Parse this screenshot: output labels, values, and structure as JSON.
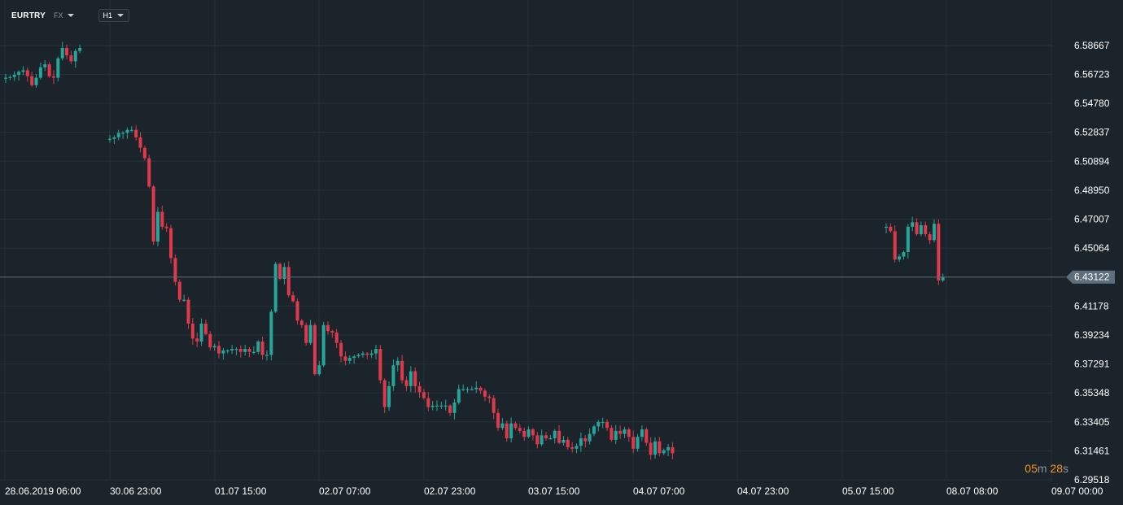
{
  "toolbar": {
    "symbol": "EURTRY",
    "instrument_type": "FX",
    "timeframe": "H1"
  },
  "countdown": {
    "minutes": "05",
    "minutes_unit": "m",
    "seconds": "28",
    "seconds_unit": "s"
  },
  "current_price": "6.43122",
  "colors": {
    "background": "#1b242b",
    "grid": "#26313a",
    "up": "#26a69a",
    "down": "#e0394b",
    "price_line": "#5b6c78",
    "price_tag": "#5e6e7a",
    "timer": "#f7931e"
  },
  "chart_data": {
    "type": "candlestick",
    "y_ticks": [
      "6.58667",
      "6.56723",
      "6.54780",
      "6.52837",
      "6.50894",
      "6.48950",
      "6.47007",
      "6.45064",
      "6.43122",
      "6.41178",
      "6.39234",
      "6.37291",
      "6.35348",
      "6.33405",
      "6.31461",
      "6.29518"
    ],
    "x_ticks": [
      "28.06.2019  06:00",
      "30.06  23:00",
      "01.07  15:00",
      "02.07  07:00",
      "02.07  23:00",
      "03.07  15:00",
      "04.07  07:00",
      "04.07  23:00",
      "05.07  15:00",
      "08.07  08:00",
      "09.07  00:00"
    ],
    "ylim": [
      6.29518,
      6.59752
    ],
    "grid": true,
    "segments": [
      {
        "label": "28.06.2019 06:00",
        "closes": [
          6.565,
          6.5655,
          6.567,
          6.569,
          6.57,
          6.566,
          6.56,
          6.565,
          6.572,
          6.574,
          6.566,
          6.565,
          6.578,
          6.585,
          6.58,
          6.576,
          6.583,
          6.585
        ]
      },
      {
        "label": "30.06 23:00",
        "closes": [
          6.524,
          6.525,
          6.528,
          6.528,
          6.53,
          6.53,
          6.525,
          6.518,
          6.511,
          6.492,
          6.455,
          6.475,
          6.465,
          6.464,
          6.444,
          6.428,
          6.416,
          6.416,
          6.4,
          6.39,
          6.388,
          6.4,
          6.393,
          6.384,
          6.385,
          6.38,
          6.382,
          6.382,
          6.383,
          6.383,
          6.381,
          6.383,
          6.381,
          6.381,
          6.388,
          6.379,
          6.379,
          6.408,
          6.44,
          6.43,
          6.438,
          6.419,
          6.415,
          6.402,
          6.399,
          6.387,
          6.399,
          6.366,
          6.372,
          6.399,
          6.395,
          6.394,
          6.387,
          6.378,
          6.375,
          6.377,
          6.378,
          6.379,
          6.38,
          6.379,
          6.38,
          6.383,
          6.362,
          6.344,
          6.358,
          6.372,
          6.375,
          6.362,
          6.358,
          6.368,
          6.358,
          6.354,
          6.35,
          6.344,
          6.345,
          6.345,
          6.345,
          6.345,
          6.34,
          6.347,
          6.356,
          6.356,
          6.356,
          6.356,
          6.357,
          6.355,
          6.351,
          6.35,
          6.34,
          6.33,
          6.333,
          6.323,
          6.333,
          6.33,
          6.328,
          6.324,
          6.329,
          6.325,
          6.319,
          6.325,
          6.323,
          6.323,
          6.328,
          6.32,
          6.322,
          6.317,
          6.316,
          6.318,
          6.323,
          6.321,
          6.326,
          6.331,
          6.334,
          6.334,
          6.33,
          6.322,
          6.328,
          6.326,
          6.329,
          6.324,
          6.316,
          6.324,
          6.329,
          6.32,
          6.312,
          6.321,
          6.313,
          6.315,
          6.317,
          6.313
        ]
      },
      {
        "label": "08.07 08:00",
        "closes": [
          6.465,
          6.462,
          6.443,
          6.445,
          6.448,
          6.465,
          6.468,
          6.46,
          6.466,
          6.46,
          6.456,
          6.467,
          6.429,
          6.431
        ]
      }
    ]
  }
}
